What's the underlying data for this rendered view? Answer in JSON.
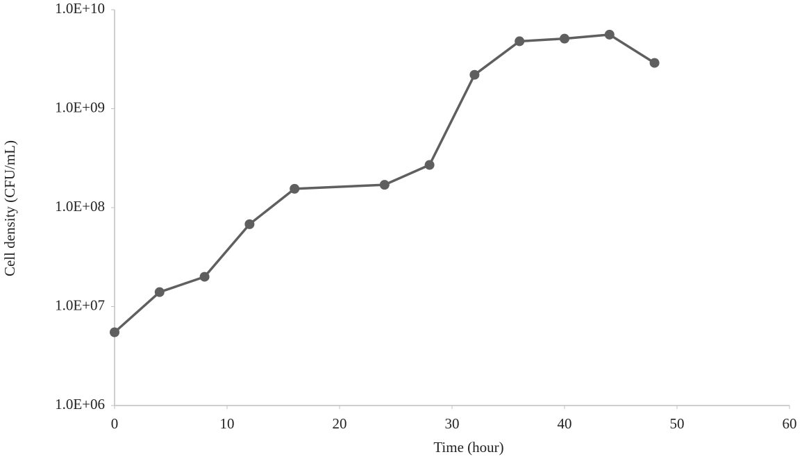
{
  "chart_data": {
    "type": "line",
    "x_label": "Time (hour)",
    "y_label": "Cell density (CFU/mL)",
    "x": [
      0,
      4,
      8,
      12,
      16,
      24,
      28,
      32,
      36,
      40,
      44,
      48
    ],
    "series": [
      {
        "color": "#5f5f5f",
        "values": [
          5500000,
          14000000,
          20000000,
          68000000,
          155000000,
          170000000,
          270000000,
          2200000000,
          4800000000,
          5100000000,
          5600000000,
          2900000000
        ]
      }
    ],
    "xlim": [
      0,
      60
    ],
    "xticks": [
      0,
      10,
      20,
      30,
      40,
      50,
      60
    ],
    "ylim": [
      1000000,
      10000000000
    ],
    "y_scale": "log",
    "yticks": [
      {
        "value": 1000000,
        "label": "1.0E+06"
      },
      {
        "value": 10000000,
        "label": "1.0E+07"
      },
      {
        "value": 100000000,
        "label": "1.0E+08"
      },
      {
        "value": 1000000000,
        "label": "1.0E+09"
      },
      {
        "value": 10000000000,
        "label": "1.0E+10"
      }
    ],
    "grid": false,
    "markers": true
  }
}
